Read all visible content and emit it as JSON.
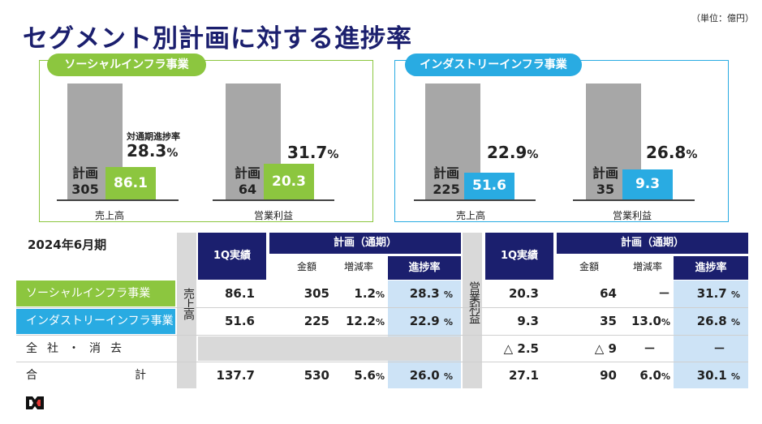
{
  "title": "セグメント別計画に対する進捗率",
  "unit_note": "（単位：億円）",
  "social": {
    "title": "ソーシャルインフラ事業",
    "revenue": {
      "plan_label": "計画",
      "plan_value": "305",
      "actual": "86.1",
      "rate_label": "対通期進捗率",
      "rate": "28.3",
      "pct": "%",
      "caption": "売上高"
    },
    "op": {
      "plan_label": "計画",
      "plan_value": "64",
      "actual": "20.3",
      "rate": "31.7",
      "pct": "%",
      "caption": "営業利益"
    }
  },
  "industry": {
    "title": "インダストリーインフラ事業",
    "revenue": {
      "plan_label": "計画",
      "plan_value": "225",
      "actual": "51.6",
      "rate": "22.9",
      "pct": "%",
      "caption": "売上高"
    },
    "op": {
      "plan_label": "計画",
      "plan_value": "35",
      "actual": "9.3",
      "rate": "26.8",
      "pct": "%",
      "caption": "営業利益"
    }
  },
  "table": {
    "period": "2024年6月期",
    "headers": {
      "q1": "1Q実績",
      "plan": "計画（通期）",
      "amount": "金額",
      "growth": "増減率",
      "progress": "進捗率"
    },
    "rev_label": "売上高",
    "op_label": "営業利益",
    "pct": "%",
    "rows": [
      {
        "label": "ソーシャルインフラ事業",
        "rev_q1": "86.1",
        "rev_plan": "305",
        "rev_growth": "1.2",
        "rev_prog": "28.3",
        "op_q1": "20.3",
        "op_plan": "64",
        "op_growth": "－",
        "op_prog": "31.7"
      },
      {
        "label": "インダストリーインフラ事業",
        "rev_q1": "51.6",
        "rev_plan": "225",
        "rev_growth": "12.2",
        "rev_prog": "22.9",
        "op_q1": "9.3",
        "op_plan": "35",
        "op_growth": "13.0",
        "op_prog": "26.8"
      },
      {
        "label": "全社・消去",
        "op_q1": "△ 2.5",
        "op_plan": "△ 9",
        "op_growth": "－",
        "op_prog": "－"
      },
      {
        "label": "合計",
        "rev_q1": "137.7",
        "rev_plan": "530",
        "rev_growth": "5.6",
        "rev_prog": "26.0",
        "op_q1": "27.1",
        "op_plan": "90",
        "op_growth": "6.0",
        "op_prog": "30.1"
      }
    ]
  },
  "colors": {
    "navy": "#1b1f6e",
    "green": "#8cc63f",
    "blue": "#29abe2",
    "light_blue": "#cde3f6"
  }
}
